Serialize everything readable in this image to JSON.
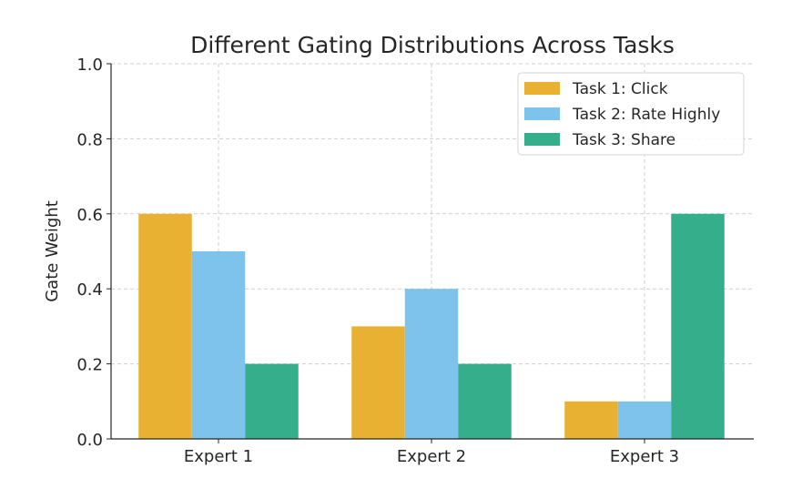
{
  "chart_data": {
    "type": "bar",
    "title": "Different Gating Distributions Across Tasks",
    "xlabel": "",
    "ylabel": "Gate Weight",
    "ylim": [
      0,
      1.0
    ],
    "yticks": [
      "0.0",
      "0.2",
      "0.4",
      "0.6",
      "0.8",
      "1.0"
    ],
    "categories": [
      "Expert 1",
      "Expert 2",
      "Expert 3"
    ],
    "series": [
      {
        "name": "Task 1: Click",
        "values": [
          0.6,
          0.3,
          0.1
        ],
        "color": "#E9B132"
      },
      {
        "name": "Task 2: Rate Highly",
        "values": [
          0.5,
          0.4,
          0.1
        ],
        "color": "#7DC3EB"
      },
      {
        "name": "Task 3: Share",
        "values": [
          0.2,
          0.2,
          0.6
        ],
        "color": "#34AE8B"
      }
    ],
    "grid": true,
    "legend": "top-right"
  }
}
